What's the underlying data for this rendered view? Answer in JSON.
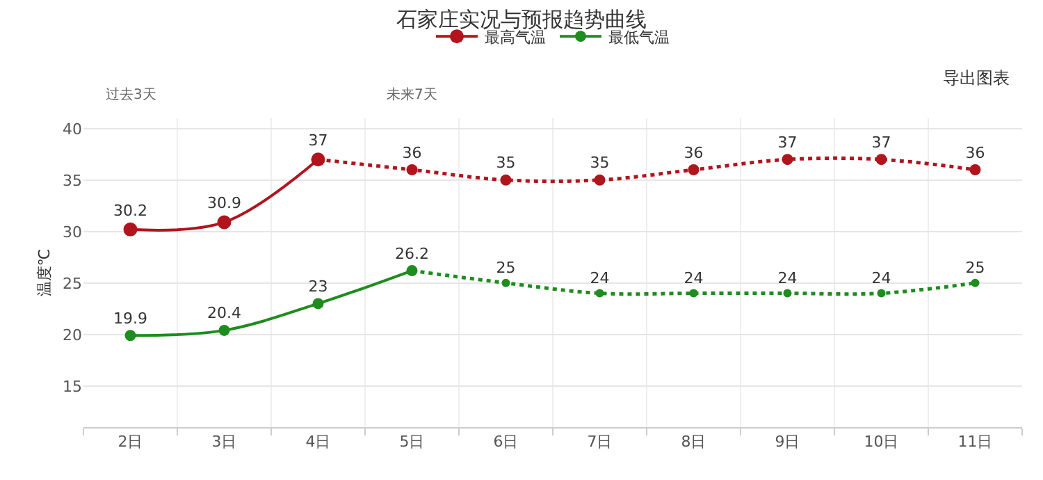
{
  "chart_data": {
    "type": "line",
    "title": "石家庄实况与预报趋势曲线",
    "ylabel": "温度℃",
    "categories": [
      "2日",
      "3日",
      "4日",
      "5日",
      "6日",
      "7日",
      "8日",
      "9日",
      "10日",
      "11日"
    ],
    "series": [
      {
        "name": "最高气温",
        "color": "#b0151e",
        "line_style": "solid",
        "values": [
          30.2,
          30.9,
          37,
          null,
          null,
          null,
          null,
          null,
          null,
          null
        ],
        "value_labels": [
          "30.2",
          "30.9",
          "37",
          null,
          null,
          null,
          null,
          null,
          null,
          null
        ]
      },
      {
        "color": "#b0151e",
        "line_style": "dotted",
        "values": [
          null,
          null,
          37,
          36,
          35,
          35,
          36,
          37,
          37,
          36
        ],
        "value_labels": [
          null,
          null,
          null,
          "36",
          "35",
          "35",
          "36",
          "37",
          "37",
          "36"
        ]
      },
      {
        "name": "最低气温",
        "color": "#1e8c1e",
        "line_style": "solid",
        "values": [
          19.9,
          20.4,
          23,
          26.2,
          null,
          null,
          null,
          null,
          null,
          null
        ],
        "value_labels": [
          "19.9",
          "20.4",
          "23",
          "26.2",
          null,
          null,
          null,
          null,
          null,
          null
        ]
      },
      {
        "color": "#1e8c1e",
        "line_style": "dotted",
        "values": [
          null,
          null,
          null,
          26.2,
          25,
          24,
          24,
          24,
          24,
          25
        ],
        "value_labels": [
          null,
          null,
          null,
          null,
          "25",
          "24",
          "24",
          "24",
          "24",
          "25"
        ]
      }
    ],
    "ylim": [
      11,
      41
    ],
    "yticks": [
      15,
      20,
      25,
      30,
      35,
      40
    ],
    "grid": true,
    "legend": "top",
    "marker": "circle",
    "annotations": [
      "过去3天",
      "未来7天",
      "导出图表"
    ]
  }
}
